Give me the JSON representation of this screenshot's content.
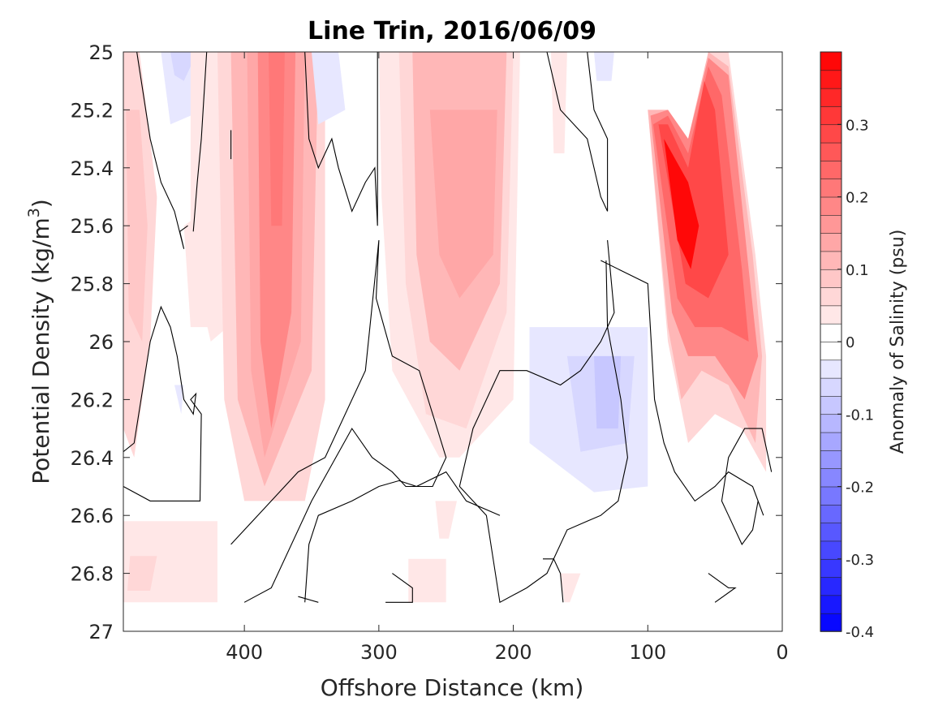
{
  "chart_data": {
    "type": "heatmap",
    "subtype": "filled-contour",
    "title": "Line Trin, 2016/06/09",
    "xlabel": "Offshore Distance (km)",
    "ylabel": {
      "main": "Potential Density (kg/m",
      "sup": "3",
      "end": ")"
    },
    "colorbar_label": "Anomaly of Salinity (psu)",
    "x_reversed": true,
    "y_reversed": true,
    "xlim": [
      490,
      0
    ],
    "ylim": [
      25,
      27
    ],
    "xticks": [
      {
        "value": 400,
        "label": "400"
      },
      {
        "value": 300,
        "label": "300"
      },
      {
        "value": 200,
        "label": "200"
      },
      {
        "value": 100,
        "label": "100"
      },
      {
        "value": 0,
        "label": "0"
      }
    ],
    "yticks": [
      {
        "value": 25,
        "label": "25"
      },
      {
        "value": 25.2,
        "label": "25.2"
      },
      {
        "value": 25.4,
        "label": "25.4"
      },
      {
        "value": 25.6,
        "label": "25.6"
      },
      {
        "value": 25.8,
        "label": "25.8"
      },
      {
        "value": 26,
        "label": "26"
      },
      {
        "value": 26.2,
        "label": "26.2"
      },
      {
        "value": 26.4,
        "label": "26.4"
      },
      {
        "value": 26.6,
        "label": "26.6"
      },
      {
        "value": 26.8,
        "label": "26.8"
      },
      {
        "value": 27,
        "label": "27"
      }
    ],
    "colorbar": {
      "range": [
        -0.4,
        0.4
      ],
      "levels": 32,
      "low_color": "#0000ff",
      "mid_color": "#ffffff",
      "high_color": "#ff0000",
      "ticks": [
        {
          "value": 0.3,
          "label": "0.3"
        },
        {
          "value": 0.2,
          "label": "0.2"
        },
        {
          "value": 0.1,
          "label": "0.1"
        },
        {
          "value": 0,
          "label": "0"
        },
        {
          "value": -0.1,
          "label": "-0.1"
        },
        {
          "value": -0.2,
          "label": "-0.2"
        },
        {
          "value": -0.3,
          "label": "-0.3"
        },
        {
          "value": -0.4,
          "label": "-0.4"
        }
      ]
    },
    "anomaly_regions": [
      {
        "x": [
          490,
          478,
          465,
          470,
          482,
          490
        ],
        "y": [
          25.0,
          25.0,
          25.5,
          26.0,
          26.4,
          26.3
        ],
        "value": 0.05
      },
      {
        "x": [
          488,
          478,
          472,
          476,
          486
        ],
        "y": [
          25.2,
          25.2,
          25.6,
          26.0,
          25.9
        ],
        "value": 0.08
      },
      {
        "x": [
          490,
          420,
          420,
          490
        ],
        "y": [
          26.62,
          26.62,
          26.9,
          26.9
        ],
        "value": 0.03
      },
      {
        "x": [
          485,
          465,
          470,
          487
        ],
        "y": [
          26.74,
          26.74,
          26.86,
          26.86
        ],
        "value": 0.06
      },
      {
        "x": [
          462,
          438,
          440,
          455
        ],
        "y": [
          25.0,
          25.0,
          25.22,
          25.25
        ],
        "value": -0.04
      },
      {
        "x": [
          455,
          435,
          445,
          452
        ],
        "y": [
          25.0,
          25.0,
          25.1,
          25.08
        ],
        "value": -0.07
      },
      {
        "x": [
          452,
          445,
          447
        ],
        "y": [
          26.15,
          26.15,
          26.25
        ],
        "value": -0.03
      },
      {
        "x": [
          440,
          395,
          385,
          400,
          425,
          440
        ],
        "y": [
          25.0,
          25.0,
          25.5,
          25.9,
          26.0,
          25.7
        ],
        "value": 0.03
      },
      {
        "x": [
          445,
          430,
          420,
          440
        ],
        "y": [
          25.6,
          25.55,
          25.95,
          25.95
        ],
        "value": 0.04
      },
      {
        "x": [
          420,
          385,
          375,
          382,
          418
        ],
        "y": [
          25.0,
          25.0,
          25.6,
          26.0,
          25.8
        ],
        "value": 0.03
      },
      {
        "x": [
          420,
          340,
          340,
          355,
          400,
          415
        ],
        "y": [
          25.0,
          25.0,
          26.2,
          26.55,
          26.55,
          26.2
        ],
        "value": 0.06
      },
      {
        "x": [
          410,
          345,
          350,
          385,
          405
        ],
        "y": [
          25.0,
          25.0,
          26.1,
          26.5,
          26.2
        ],
        "value": 0.1
      },
      {
        "x": [
          398,
          355,
          358,
          385,
          395
        ],
        "y": [
          25.0,
          25.0,
          26.0,
          26.4,
          26.1
        ],
        "value": 0.14
      },
      {
        "x": [
          390,
          362,
          365,
          380,
          388
        ],
        "y": [
          25.0,
          25.0,
          25.9,
          26.3,
          26.0
        ],
        "value": 0.18
      },
      {
        "x": [
          382,
          370,
          372,
          380
        ],
        "y": [
          25.0,
          25.0,
          25.6,
          25.6
        ],
        "value": 0.22
      },
      {
        "x": [
          350,
          330,
          325,
          345
        ],
        "y": [
          25.0,
          25.0,
          25.2,
          25.25
        ],
        "value": -0.03
      },
      {
        "x": [
          322,
          295,
          305,
          315
        ],
        "y": [
          25.2,
          25.2,
          25.8,
          25.8
        ],
        "value": 0.02
      },
      {
        "x": [
          312,
          300,
          302,
          310
        ],
        "y": [
          26.7,
          26.7,
          26.85,
          26.85
        ],
        "value": 0.02
      },
      {
        "x": [
          300,
          195,
          200,
          240,
          255,
          290,
          298
        ],
        "y": [
          25.0,
          25.0,
          26.2,
          26.4,
          26.4,
          26.1,
          25.5
        ],
        "value": 0.04
      },
      {
        "x": [
          285,
          200,
          205,
          235,
          265,
          280
        ],
        "y": [
          25.0,
          25.0,
          25.9,
          26.3,
          26.25,
          25.8
        ],
        "value": 0.07
      },
      {
        "x": [
          275,
          205,
          210,
          240,
          262,
          272
        ],
        "y": [
          25.0,
          25.0,
          25.8,
          26.1,
          26.0,
          25.7
        ],
        "value": 0.1
      },
      {
        "x": [
          262,
          212,
          215,
          240,
          255
        ],
        "y": [
          25.2,
          25.2,
          25.7,
          25.85,
          25.7
        ],
        "value": 0.13
      },
      {
        "x": [
          278,
          250,
          250,
          278
        ],
        "y": [
          26.75,
          26.75,
          26.9,
          26.9
        ],
        "value": 0.03
      },
      {
        "x": [
          258,
          242,
          248,
          255
        ],
        "y": [
          26.55,
          26.55,
          26.68,
          26.68
        ],
        "value": 0.03
      },
      {
        "x": [
          172,
          160,
          162,
          170
        ],
        "y": [
          25.0,
          25.0,
          25.35,
          25.35
        ],
        "value": 0.03
      },
      {
        "x": [
          140,
          125,
          127,
          138
        ],
        "y": [
          25.0,
          25.0,
          25.1,
          25.1
        ],
        "value": -0.03
      },
      {
        "x": [
          165,
          150,
          158,
          162
        ],
        "y": [
          26.8,
          26.8,
          26.9,
          26.9
        ],
        "value": 0.03
      },
      {
        "x": [
          188,
          100,
          100,
          140,
          188
        ],
        "y": [
          25.95,
          25.95,
          26.5,
          26.52,
          26.35
        ],
        "value": -0.04
      },
      {
        "x": [
          160,
          110,
          115,
          150
        ],
        "y": [
          26.05,
          26.05,
          26.35,
          26.38
        ],
        "value": -0.07
      },
      {
        "x": [
          140,
          120,
          122,
          138
        ],
        "y": [
          26.05,
          26.05,
          26.3,
          26.3
        ],
        "value": -0.08
      },
      {
        "x": [
          100,
          85,
          70,
          55,
          40,
          20,
          12,
          12,
          30,
          50,
          70,
          85
        ],
        "y": [
          25.2,
          25.2,
          25.3,
          25.0,
          25.0,
          25.7,
          26.05,
          26.45,
          26.3,
          26.25,
          26.35,
          26.0
        ],
        "value": 0.06
      },
      {
        "x": [
          100,
          85,
          70,
          55,
          40,
          22,
          15,
          20,
          40,
          60,
          75,
          85
        ],
        "y": [
          25.2,
          25.2,
          25.3,
          25.0,
          25.05,
          25.7,
          26.05,
          26.35,
          26.15,
          26.1,
          26.2,
          25.95
        ],
        "value": 0.12
      },
      {
        "x": [
          98,
          85,
          70,
          55,
          40,
          25,
          18,
          28,
          50,
          70,
          82
        ],
        "y": [
          25.22,
          25.2,
          25.3,
          25.02,
          25.08,
          25.75,
          26.05,
          26.2,
          26.05,
          26.05,
          25.9
        ],
        "value": 0.18
      },
      {
        "x": [
          96,
          85,
          70,
          55,
          45,
          30,
          25,
          45,
          65,
          78
        ],
        "y": [
          25.25,
          25.22,
          25.35,
          25.05,
          25.15,
          25.75,
          26.0,
          25.95,
          25.95,
          25.85
        ],
        "value": 0.24
      },
      {
        "x": [
          92,
          85,
          70,
          58,
          50,
          40,
          55,
          72
        ],
        "y": [
          25.25,
          25.25,
          25.4,
          25.1,
          25.2,
          25.7,
          25.85,
          25.8
        ],
        "value": 0.3
      },
      {
        "x": [
          88,
          70,
          62,
          68,
          78
        ],
        "y": [
          25.3,
          25.45,
          25.6,
          25.75,
          25.65
        ],
        "value": 0.38
      }
    ],
    "zero_contours": [
      {
        "x": [
          480,
          470,
          462,
          452,
          445,
          448,
          442
        ],
        "y": [
          25.0,
          25.3,
          25.45,
          25.55,
          25.68,
          25.62,
          25.6
        ]
      },
      {
        "x": [
          428,
          432,
          435,
          438
        ],
        "y": [
          25.0,
          25.3,
          25.45,
          25.62
        ]
      },
      {
        "x": [
          490,
          482,
          470,
          462,
          455,
          450,
          445,
          438,
          436,
          440,
          432,
          433,
          470,
          490
        ],
        "y": [
          26.38,
          26.35,
          26.0,
          25.88,
          25.95,
          26.05,
          26.2,
          26.25,
          26.18,
          26.2,
          26.25,
          26.55,
          26.55,
          26.5
        ]
      },
      {
        "x": [
          410,
          410
        ],
        "y": [
          25.27,
          25.37
        ]
      },
      {
        "x": [
          355,
          352,
          345,
          335,
          330,
          320,
          310,
          303,
          301,
          301
        ],
        "y": [
          25.0,
          25.3,
          25.4,
          25.3,
          25.4,
          25.55,
          25.45,
          25.4,
          25.6,
          25.0
        ]
      },
      {
        "x": [
          410,
          390,
          360,
          340,
          310,
          300,
          302,
          290,
          270,
          250,
          260,
          280,
          290,
          305,
          320,
          350,
          380,
          400
        ],
        "y": [
          26.7,
          26.6,
          26.45,
          26.4,
          26.1,
          25.65,
          25.85,
          26.05,
          26.1,
          26.4,
          26.5,
          26.5,
          26.45,
          26.4,
          26.3,
          26.55,
          26.85,
          26.9
        ]
      },
      {
        "x": [
          355,
          352,
          345,
          320,
          300,
          285,
          272,
          250,
          235,
          210
        ],
        "y": [
          26.9,
          26.7,
          26.6,
          26.55,
          26.5,
          26.48,
          26.5,
          26.45,
          26.55,
          26.6
        ]
      },
      {
        "x": [
          360,
          345
        ],
        "y": [
          26.88,
          26.9
        ]
      },
      {
        "x": [
          175,
          165,
          145,
          135,
          130,
          130,
          140,
          145
        ],
        "y": [
          25.0,
          25.2,
          25.3,
          25.5,
          25.55,
          25.3,
          25.2,
          25.0
        ]
      },
      {
        "x": [
          130,
          125,
          135,
          150,
          165,
          190,
          210,
          230,
          240,
          230,
          220,
          210,
          190,
          175,
          160,
          145,
          135,
          122,
          115,
          120,
          130,
          131
        ],
        "y": [
          25.65,
          25.9,
          26.0,
          26.1,
          26.15,
          26.1,
          26.1,
          26.3,
          26.5,
          26.55,
          26.6,
          26.9,
          26.85,
          26.8,
          26.65,
          26.62,
          26.6,
          26.55,
          26.4,
          26.2,
          25.95,
          25.72
        ]
      },
      {
        "x": [
          135,
          100,
          95,
          88,
          80,
          65,
          50,
          40,
          22,
          14
        ],
        "y": [
          25.72,
          25.8,
          26.2,
          26.35,
          26.45,
          26.55,
          26.5,
          26.45,
          26.5,
          26.6
        ]
      },
      {
        "x": [
          290,
          275,
          275,
          295
        ],
        "y": [
          26.8,
          26.85,
          26.9,
          26.9
        ]
      },
      {
        "x": [
          178,
          170,
          165,
          163
        ],
        "y": [
          26.75,
          26.75,
          26.8,
          26.9
        ]
      },
      {
        "x": [
          50,
          35,
          40,
          55
        ],
        "y": [
          26.9,
          26.85,
          26.85,
          26.8
        ]
      },
      {
        "x": [
          18,
          22,
          30,
          40,
          45,
          40,
          28,
          15,
          8
        ],
        "y": [
          26.55,
          26.65,
          26.7,
          26.6,
          26.55,
          26.4,
          26.3,
          26.3,
          26.45
        ]
      }
    ]
  }
}
